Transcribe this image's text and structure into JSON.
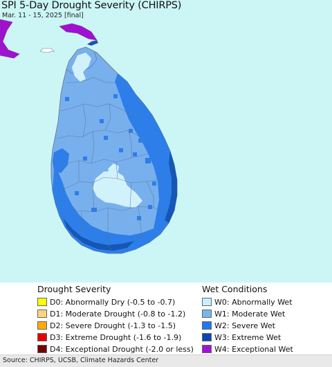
{
  "header": {
    "title": "SPI 5-Day Drought Severity (CHIRPS)",
    "subtitle": "Mar. 11 - 15, 2025 [final]"
  },
  "colors": {
    "ocean": "#ccf6f6",
    "land_w1": "#78b0ee",
    "land_w2": "#2d7ee8",
    "land_w3": "#1656b5",
    "land_w0": "#d2f2fb",
    "land_w4": "#a010d0",
    "boundary": "#7a8fa8"
  },
  "legend": {
    "drought": {
      "heading": "Drought Severity",
      "items": [
        {
          "label": "D0: Abnormally Dry (-0.5 to -0.7)",
          "color": "#ffff00"
        },
        {
          "label": "D1: Moderate Drought (-0.8 to -1.2)",
          "color": "#fcd37f"
        },
        {
          "label": "D2: Severe Drought (-1.3 to -1.5)",
          "color": "#ffaa00"
        },
        {
          "label": "D3: Extreme Drought (-1.6 to -1.9)",
          "color": "#e60000"
        },
        {
          "label": "D4: Exceptional Drought (-2.0 or less)",
          "color": "#730000"
        }
      ]
    },
    "wet": {
      "heading": "Wet Conditions",
      "items": [
        {
          "label": "W0: Abnormally Wet",
          "color": "#c8f0fa"
        },
        {
          "label": "W1: Moderate Wet",
          "color": "#78b4f0"
        },
        {
          "label": "W2: Severe Wet",
          "color": "#1e78f0"
        },
        {
          "label": "W3: Extreme Wet",
          "color": "#0a46b4"
        },
        {
          "label": "W4: Exceptional Wet",
          "color": "#a014d2"
        }
      ]
    }
  },
  "footer": {
    "source": "Source: CHIRPS, UCSB, Climate Hazards Center"
  }
}
